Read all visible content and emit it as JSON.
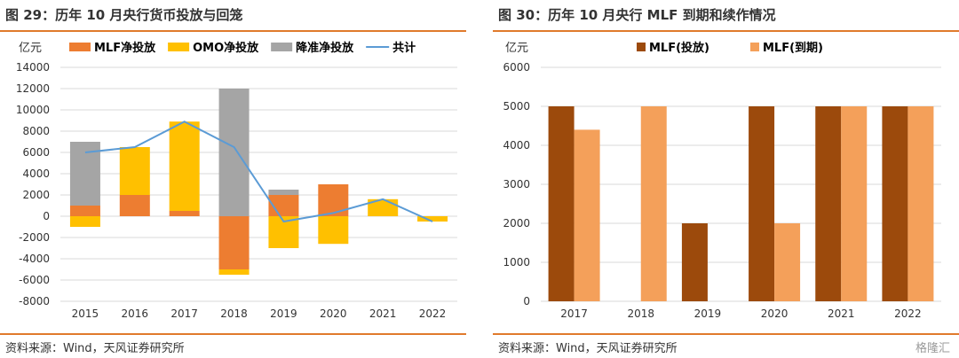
{
  "left": {
    "title": "图 29：历年 10 月央行货币投放与回笼",
    "source": "资料来源：Wind，天风证券研究所",
    "chart_data": {
      "type": "bar",
      "stacked": true,
      "unit_label": "亿元",
      "categories": [
        "2015",
        "2016",
        "2017",
        "2018",
        "2019",
        "2020",
        "2021",
        "2022"
      ],
      "ylim": [
        -8000,
        14000
      ],
      "yticks": [
        "14000",
        "12000",
        "10000",
        "8000",
        "6000",
        "4000",
        "2000",
        "0",
        "-2000",
        "-4000",
        "-6000",
        "-8000"
      ],
      "grid": true,
      "legend_position": "top",
      "series": [
        {
          "name": "MLF净投放",
          "type": "bar",
          "color": "#ed7d31",
          "values": [
            1000,
            2000,
            500,
            -5000,
            2000,
            3000,
            0,
            0
          ]
        },
        {
          "name": "OMO净投放",
          "type": "bar",
          "color": "#ffc000",
          "values": [
            -1000,
            4500,
            8400,
            -500,
            -3000,
            -2600,
            1600,
            -500
          ]
        },
        {
          "name": "降准净投放",
          "type": "bar",
          "color": "#a5a5a5",
          "values": [
            6000,
            0,
            0,
            12000,
            500,
            0,
            0,
            0
          ]
        },
        {
          "name": "共计",
          "type": "line",
          "color": "#5b9bd5",
          "values": [
            6000,
            6500,
            8900,
            6500,
            -500,
            300,
            1600,
            -500
          ]
        }
      ]
    }
  },
  "right": {
    "title": "图 30：历年 10 月央行 MLF 到期和续作情况",
    "source": "资料来源：Wind，天风证券研究所",
    "chart_data": {
      "type": "bar",
      "unit_label": "亿元",
      "categories": [
        "2017",
        "2018",
        "2019",
        "2020",
        "2021",
        "2022"
      ],
      "ylim": [
        0,
        6000
      ],
      "yticks": [
        "6000",
        "5000",
        "4000",
        "3000",
        "2000",
        "1000",
        "0"
      ],
      "grid": true,
      "legend_position": "top",
      "series": [
        {
          "name": "MLF(投放)",
          "color": "#9c4a0c",
          "values": [
            5000,
            0,
            2000,
            5000,
            5000,
            5000
          ]
        },
        {
          "name": "MLF(到期)",
          "color": "#f4a05a",
          "values": [
            4400,
            5000,
            0,
            2000,
            5000,
            5000
          ]
        }
      ]
    }
  },
  "watermark": "格隆汇"
}
